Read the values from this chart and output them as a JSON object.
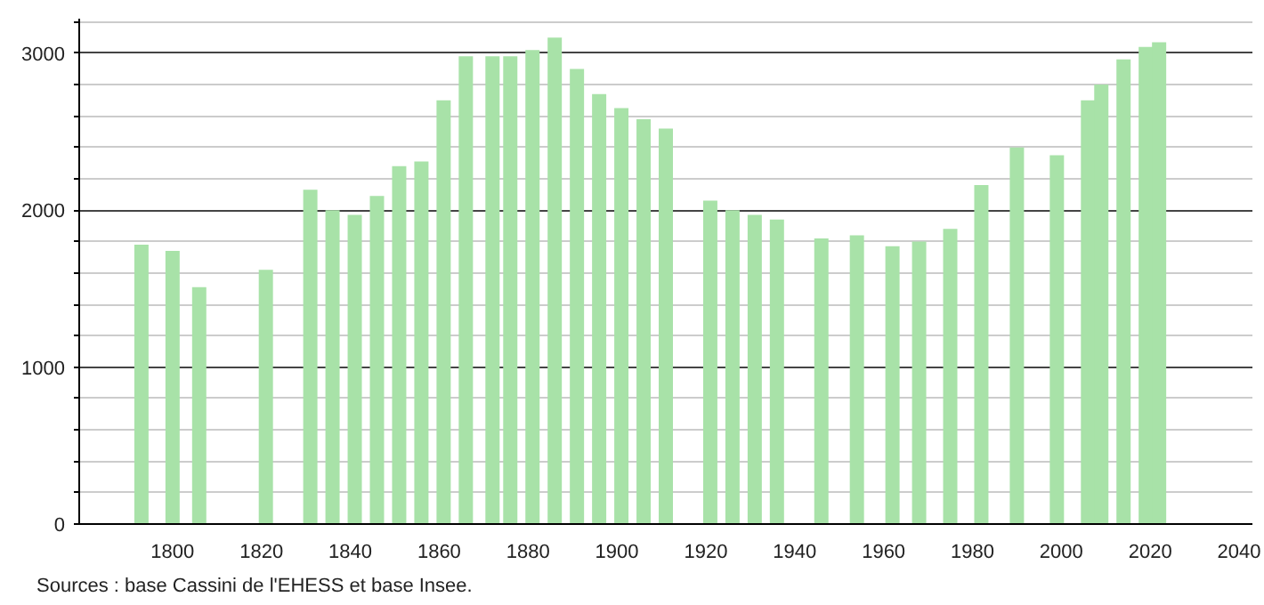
{
  "chart_data": {
    "type": "bar",
    "x": [
      1793,
      1800,
      1806,
      1821,
      1831,
      1836,
      1841,
      1846,
      1851,
      1856,
      1861,
      1866,
      1872,
      1876,
      1881,
      1886,
      1891,
      1896,
      1901,
      1906,
      1911,
      1921,
      1926,
      1931,
      1936,
      1946,
      1954,
      1962,
      1968,
      1975,
      1982,
      1990,
      1999,
      2006,
      2009,
      2014,
      2019,
      2022
    ],
    "values": [
      1780,
      1740,
      1510,
      1620,
      2130,
      2000,
      1970,
      2090,
      2280,
      2310,
      2700,
      2980,
      2980,
      2980,
      3020,
      3100,
      2900,
      2740,
      2650,
      2580,
      2520,
      2060,
      2000,
      1970,
      1940,
      1820,
      1840,
      1770,
      1800,
      1880,
      2160,
      2400,
      2350,
      2700,
      2800,
      2960,
      3040,
      3070
    ],
    "color": "#a8e2a8",
    "xlim": [
      1779,
      2043
    ],
    "xticks": [
      1800,
      1820,
      1840,
      1860,
      1880,
      1900,
      1920,
      1940,
      1960,
      1980,
      2000,
      2020,
      2040
    ],
    "ylim": [
      0,
      3220
    ],
    "yticks": [
      0,
      {
        "value": 200,
        "label": null
      },
      {
        "value": 400,
        "label": null
      },
      {
        "value": 600,
        "label": null
      },
      {
        "value": 800,
        "label": null
      },
      1000,
      {
        "value": 1200,
        "label": null
      },
      {
        "value": 1400,
        "label": null
      },
      {
        "value": 1600,
        "label": null
      },
      {
        "value": 1800,
        "label": null
      },
      2000,
      {
        "value": 2200,
        "label": null
      },
      {
        "value": 2400,
        "label": null
      },
      {
        "value": 2600,
        "label": null
      },
      {
        "value": 2800,
        "label": null
      },
      3000,
      {
        "value": 3200,
        "label": null
      }
    ],
    "grid": "y",
    "annotations": [
      "Sources : base Cassini de l'EHESS et base Insee."
    ]
  }
}
